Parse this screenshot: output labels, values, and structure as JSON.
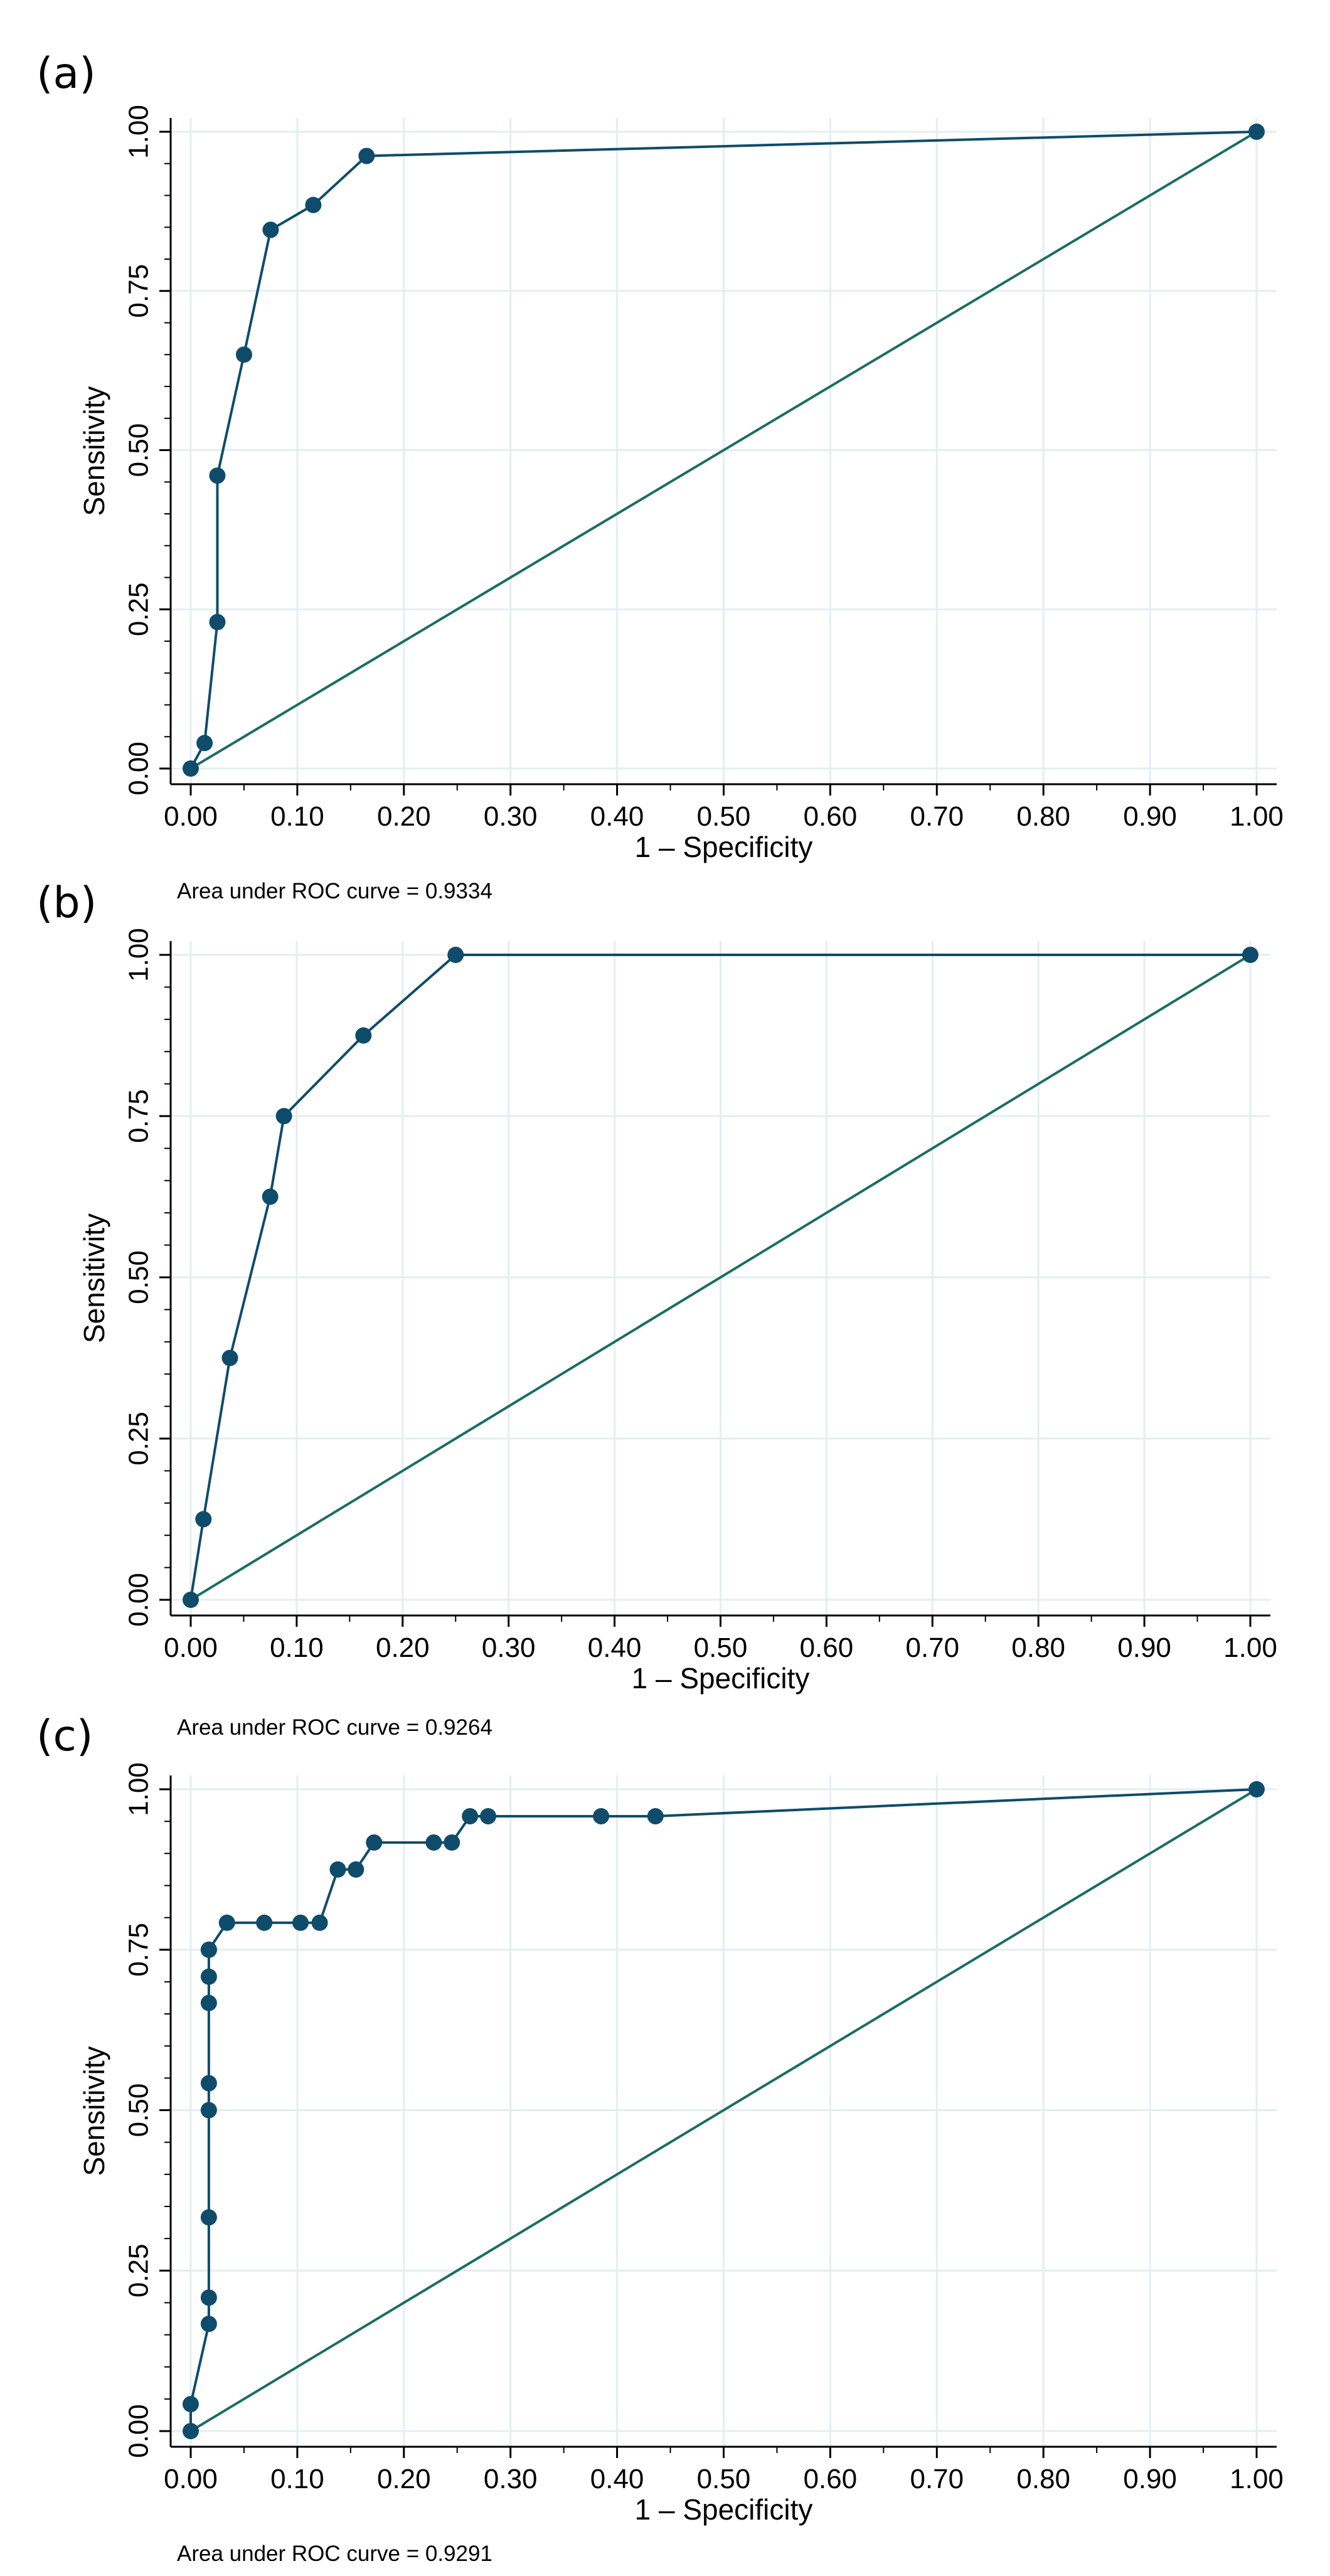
{
  "figure": {
    "colors": {
      "roc": "#0f4c6b",
      "reference": "#1a6e63",
      "grid": "#e3eef2",
      "axis": "#000000"
    },
    "x_ticks": [
      "0.00",
      "0.10",
      "0.20",
      "0.30",
      "0.40",
      "0.50",
      "0.60",
      "0.70",
      "0.80",
      "0.90",
      "1.00"
    ],
    "y_ticks": [
      "0.00",
      "0.25",
      "0.50",
      "0.75",
      "1.00"
    ]
  },
  "chart_data": [
    {
      "type": "line",
      "panel_label": "(a)",
      "xlabel": "1 – Specificity",
      "ylabel": "Sensitivity",
      "xlim": [
        0,
        1
      ],
      "ylim": [
        0,
        1
      ],
      "note": "Area under ROC curve = 0.9334",
      "series": [
        {
          "name": "ROC",
          "x": [
            0,
            0.013,
            0.025,
            0.025,
            0.05,
            0.075,
            0.115,
            0.165,
            1.0
          ],
          "y": [
            0,
            0.04,
            0.23,
            0.46,
            0.65,
            0.846,
            0.885,
            0.962,
            1.0
          ]
        },
        {
          "name": "Reference",
          "x": [
            0,
            1
          ],
          "y": [
            0,
            1
          ]
        }
      ]
    },
    {
      "type": "line",
      "panel_label": "(b)",
      "xlabel": "1 – Specificity",
      "ylabel": "Sensitivity",
      "xlim": [
        0,
        1
      ],
      "ylim": [
        0,
        1
      ],
      "note": "Area under ROC curve = 0.9264",
      "series": [
        {
          "name": "ROC",
          "x": [
            0,
            0.012,
            0.037,
            0.075,
            0.088,
            0.163,
            0.25,
            1.0
          ],
          "y": [
            0,
            0.125,
            0.375,
            0.625,
            0.75,
            0.875,
            1.0,
            1.0
          ]
        },
        {
          "name": "Reference",
          "x": [
            0,
            1
          ],
          "y": [
            0,
            1
          ]
        }
      ]
    },
    {
      "type": "line",
      "panel_label": "(c)",
      "xlabel": "1 – Specificity",
      "ylabel": "Sensitivity",
      "xlim": [
        0,
        1
      ],
      "ylim": [
        0,
        1
      ],
      "note": "Area under ROC curve = 0.9291",
      "series": [
        {
          "name": "ROC",
          "x": [
            0,
            0,
            0.017,
            0.017,
            0.017,
            0.017,
            0.017,
            0.017,
            0.017,
            0.017,
            0.017,
            0.034,
            0.069,
            0.103,
            0.121,
            0.138,
            0.155,
            0.172,
            0.228,
            0.245,
            0.262,
            0.279,
            0.385,
            0.436,
            1.0
          ],
          "y": [
            0,
            0.042,
            0.167,
            0.208,
            0.333,
            0.5,
            0.542,
            0.667,
            0.708,
            0.75,
            0.75,
            0.792,
            0.792,
            0.792,
            0.792,
            0.875,
            0.875,
            0.917,
            0.917,
            0.917,
            0.958,
            0.958,
            0.958,
            0.958,
            1.0
          ]
        },
        {
          "name": "Reference",
          "x": [
            0,
            1
          ],
          "y": [
            0,
            1
          ]
        }
      ]
    }
  ]
}
